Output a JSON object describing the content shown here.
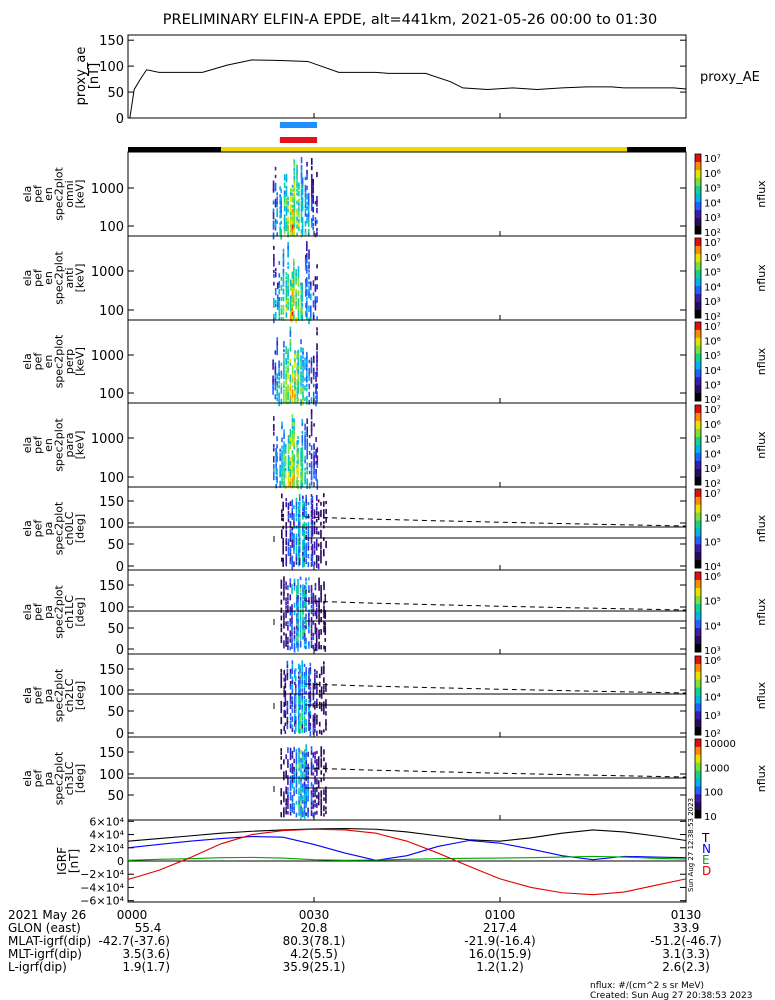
{
  "title": "PRELIMINARY ELFIN-A EPDE, alt=441km, 2021-05-26 00:00 to 01:30",
  "colors": {
    "blue_bar": "#1e8fff",
    "red_bar": "#e8101a",
    "black": "#000000",
    "yellow": "#f2d600"
  },
  "chart_data": [
    {
      "panel": "proxy_ae",
      "type": "line",
      "ylabel_lines": [
        "proxy_ae",
        "[nT]"
      ],
      "legend": "proxy_AE",
      "yticks": [
        "0",
        "50",
        "100",
        "150"
      ],
      "ylim": [
        0,
        160
      ],
      "x_minutes": [
        0.3,
        1,
        2,
        3,
        5,
        6,
        8,
        10,
        12,
        16,
        20,
        24,
        29,
        34,
        40,
        42,
        48,
        52,
        54,
        58,
        62,
        66,
        70,
        74,
        78,
        80,
        84,
        88,
        90
      ],
      "y": [
        0,
        55,
        75,
        93,
        88,
        88,
        88,
        88,
        88,
        102,
        112,
        111,
        109,
        88,
        88,
        86,
        86,
        70,
        58,
        55,
        58,
        55,
        58,
        60,
        60,
        58,
        58,
        58,
        56
      ]
    },
    {
      "panel": "orbit",
      "bars": [
        {
          "color": "blue",
          "x_range_minutes": [
            24.5,
            30.5
          ]
        },
        {
          "color": "red",
          "x_range_minutes": [
            24.5,
            30.5
          ]
        }
      ],
      "segments": [
        {
          "color": "black",
          "x_range_minutes": [
            0,
            15
          ]
        },
        {
          "color": "yellow",
          "x_range_minutes": [
            15,
            80.5
          ]
        },
        {
          "color": "black",
          "x_range_minutes": [
            80.5,
            90
          ]
        }
      ]
    },
    {
      "panel": "ela_pef_en_spec2plot_omni",
      "type": "heatmap",
      "ylabel_lines": [
        "ela",
        "pef",
        "en",
        "spec2plot",
        "omni",
        "[keV]"
      ],
      "yticks": [
        "100",
        "1000"
      ],
      "cbar_label": "nflux",
      "cbar_ticks": [
        "10²",
        "10³",
        "10⁴",
        "10⁵",
        "10⁶",
        "10⁷"
      ]
    },
    {
      "panel": "ela_pef_en_spec2plot_anti",
      "type": "heatmap",
      "ylabel_lines": [
        "ela",
        "pef",
        "en",
        "spec2plot",
        "anti",
        "[keV]"
      ],
      "yticks": [
        "100",
        "1000"
      ],
      "cbar_label": "nflux",
      "cbar_ticks": [
        "10²",
        "10³",
        "10⁴",
        "10⁵",
        "10⁶",
        "10⁷"
      ]
    },
    {
      "panel": "ela_pef_en_spec2plot_perp",
      "type": "heatmap",
      "ylabel_lines": [
        "ela",
        "pef",
        "en",
        "spec2plot",
        "perp",
        "[keV]"
      ],
      "yticks": [
        "100",
        "1000"
      ],
      "cbar_label": "nflux",
      "cbar_ticks": [
        "10²",
        "10³",
        "10⁴",
        "10⁵",
        "10⁶",
        "10⁷"
      ]
    },
    {
      "panel": "ela_pef_en_spec2plot_para",
      "type": "heatmap",
      "ylabel_lines": [
        "ela",
        "pef",
        "en",
        "spec2plot",
        "para",
        "[keV]"
      ],
      "yticks": [
        "100",
        "1000"
      ],
      "cbar_label": "nflux",
      "cbar_ticks": [
        "10²",
        "10³",
        "10⁴",
        "10⁵",
        "10⁶",
        "10⁷"
      ]
    },
    {
      "panel": "ela_pef_pa_spec2plot_ch0LC",
      "type": "heatmap",
      "ylabel_lines": [
        "ela",
        "pef",
        "pa",
        "spec2plot",
        "ch0LC",
        "[deg]"
      ],
      "yticks": [
        "0",
        "50",
        "100",
        "150"
      ],
      "cbar_label": "nflux",
      "cbar_ticks": [
        "10⁴",
        "10⁵",
        "10⁶",
        "10⁷"
      ]
    },
    {
      "panel": "ela_pef_pa_spec2plot_ch1LC",
      "type": "heatmap",
      "ylabel_lines": [
        "ela",
        "pef",
        "pa",
        "spec2plot",
        "ch1LC",
        "[deg]"
      ],
      "yticks": [
        "0",
        "50",
        "100",
        "150"
      ],
      "cbar_label": "nflux",
      "cbar_ticks": [
        "10³",
        "10⁴",
        "10⁵",
        "10⁶"
      ]
    },
    {
      "panel": "ela_pef_pa_spec2plot_ch2LC",
      "type": "heatmap",
      "ylabel_lines": [
        "ela",
        "pef",
        "pa",
        "spec2plot",
        "ch2LC",
        "[deg]"
      ],
      "yticks": [
        "0",
        "50",
        "100",
        "150"
      ],
      "cbar_label": "nflux",
      "cbar_ticks": [
        "10²",
        "10³",
        "10⁴",
        "10⁵",
        "10⁶"
      ]
    },
    {
      "panel": "ela_pef_pa_spec2plot_ch3LC",
      "type": "heatmap",
      "ylabel_lines": [
        "ela",
        "pef",
        "pa",
        "spec2plot",
        "ch3LC",
        "[deg]"
      ],
      "yticks": [
        "50",
        "100",
        "150"
      ],
      "cbar_label": "nflux",
      "cbar_ticks": [
        "10",
        "100",
        "1000",
        "10000"
      ]
    },
    {
      "panel": "igrf",
      "type": "line",
      "ylabel_lines": [
        "IGRF",
        "[nT]"
      ],
      "yticks": [
        "−6×10⁴",
        "−4×10⁴",
        "−2×10⁴",
        "0",
        "2×10⁴",
        "4×10⁴",
        "6×10⁴"
      ],
      "ylim": [
        -62000,
        62000
      ],
      "x_minutes": [
        0,
        5,
        10,
        15,
        20,
        25,
        30,
        35,
        40,
        45,
        50,
        55,
        60,
        65,
        70,
        75,
        80,
        85,
        90
      ],
      "series": [
        {
          "name": "T",
          "color": "#000000",
          "values": [
            30000,
            34000,
            38000,
            42000,
            45000,
            47000,
            48500,
            49000,
            48000,
            44000,
            38000,
            32000,
            30000,
            35000,
            42000,
            47000,
            44000,
            38000,
            31000
          ]
        },
        {
          "name": "N",
          "color": "#0000ff",
          "values": [
            20000,
            25000,
            30000,
            34000,
            37000,
            36000,
            25000,
            12000,
            1000,
            8000,
            22000,
            31000,
            27000,
            18000,
            8000,
            2000,
            7000,
            6000,
            5000
          ]
        },
        {
          "name": "E",
          "color": "#00aa00",
          "values": [
            1000,
            2500,
            3500,
            5000,
            5500,
            4500,
            2000,
            1000,
            1500,
            2500,
            3500,
            4000,
            4500,
            5000,
            6000,
            7000,
            6000,
            4000,
            3000
          ]
        },
        {
          "name": "D",
          "color": "#e00000",
          "values": [
            -28000,
            -14000,
            5000,
            26000,
            40000,
            46000,
            48000,
            47000,
            42000,
            30000,
            12000,
            -8000,
            -27000,
            -40000,
            -48000,
            -51000,
            -47000,
            -37000,
            -27000
          ]
        }
      ]
    }
  ],
  "xticks": [
    "0000",
    "0030",
    "0100",
    "0130"
  ],
  "info_rows": [
    {
      "label": "2021 May 26",
      "values": [
        "0000",
        "0030",
        "0100",
        "0130"
      ]
    },
    {
      "label": "GLON (east)",
      "values": [
        "55.4",
        "20.8",
        "217.4",
        "33.9"
      ]
    },
    {
      "label": "MLAT-igrf(dip)",
      "first": "-42.7(-37.6)",
      "values": [
        "80.3(78.1)",
        "-21.9(-16.4)",
        "-51.2(-46.7)"
      ]
    },
    {
      "label": "MLT-igrf(dip)",
      "first": "3.5(3.6)",
      "values": [
        "4.2(5.5)",
        "16.0(15.9)",
        "3.1(3.3)"
      ]
    },
    {
      "label": "L-igrf(dip)",
      "first": "1.9(1.7)",
      "values": [
        "35.9(25.1)",
        "1.2(1.2)",
        "2.6(2.3)"
      ]
    }
  ],
  "footer": {
    "units": "nflux: #/(cm^2 s sr MeV)",
    "created": "Created: Sun Aug 27 20:38:53 2023",
    "vertical_stamp": "Sun Aug 27 12:38:53 2023"
  }
}
